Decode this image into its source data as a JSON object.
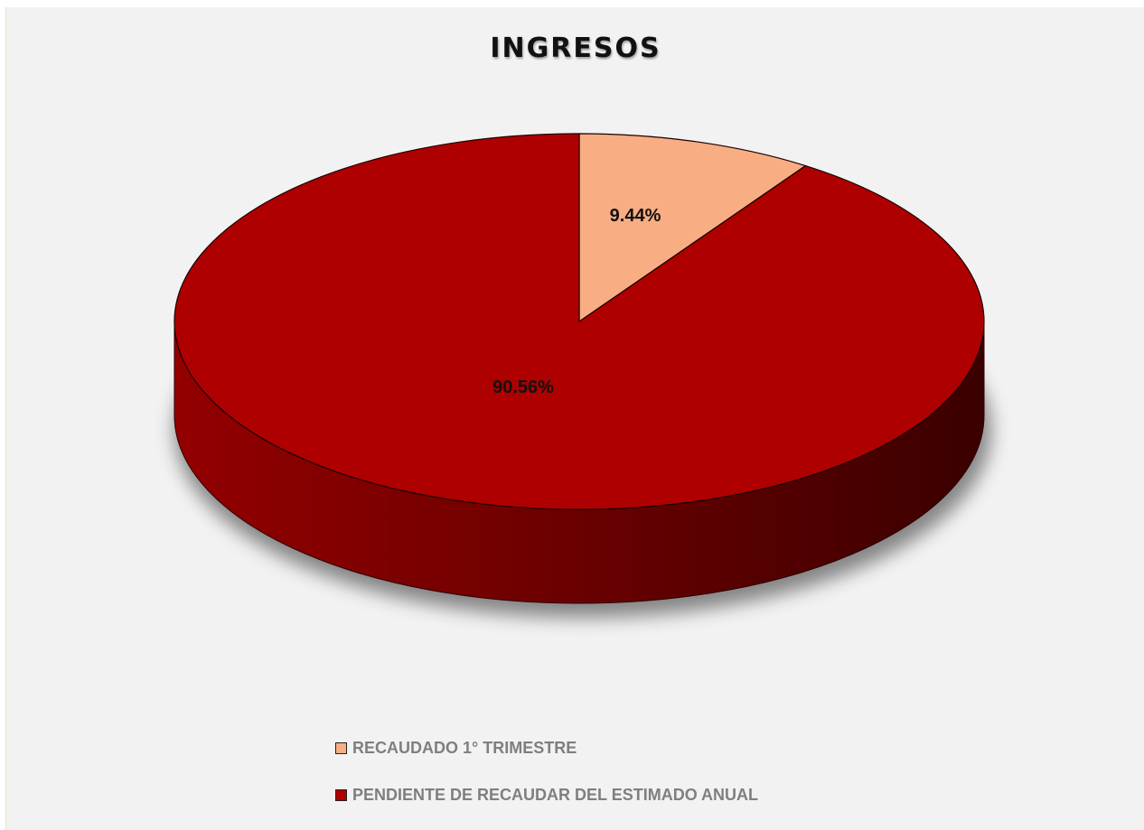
{
  "chart_data": {
    "type": "pie",
    "title": "INGRESOS",
    "categories": [
      "RECAUDADO 1° TRIMESTRE",
      "PENDIENTE DE RECAUDAR DEL ESTIMADO ANUAL"
    ],
    "values": [
      9.44,
      90.56
    ],
    "data_labels": [
      "9.44%",
      "90.56%"
    ],
    "colors": [
      "#f9ad83",
      "#ae0000"
    ],
    "legend_position": "bottom",
    "style": "3d"
  }
}
